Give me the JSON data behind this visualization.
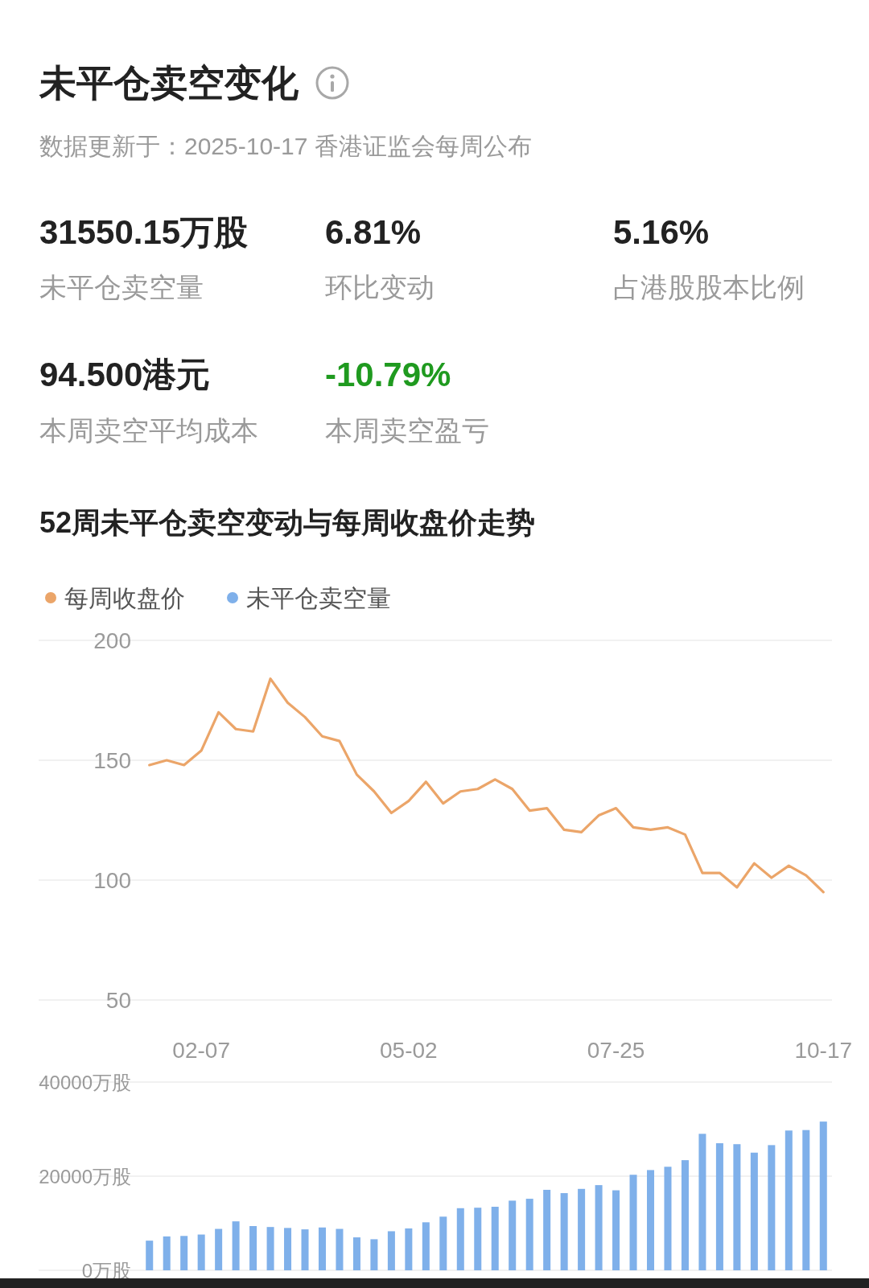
{
  "chart_data": [
    {
      "type": "other",
      "title": "未平仓卖空变化",
      "subtitle": "数据更新于：2025-10-17 香港证监会每周公布",
      "annotations": [
        "31550.15万股",
        "未平仓卖空量",
        "6.81%",
        "环比变动",
        "5.16%",
        "占港股股本比例",
        "94.500港元",
        "本周卖空平均成本",
        "-10.79%",
        "本周卖空盈亏"
      ]
    },
    {
      "type": "line",
      "title": "52周未平仓卖空变动与每周收盘价走势",
      "categories": [
        null,
        null,
        null,
        "02-07",
        null,
        null,
        null,
        null,
        null,
        null,
        null,
        null,
        null,
        null,
        null,
        "05-02",
        null,
        null,
        null,
        null,
        null,
        null,
        null,
        null,
        null,
        null,
        null,
        "07-25",
        null,
        null,
        null,
        null,
        null,
        null,
        null,
        null,
        null,
        null,
        null,
        "10-17"
      ],
      "series": [
        {
          "name": "每周收盘价",
          "color": "#eba569",
          "values": [
            148,
            150,
            148,
            154,
            170,
            163,
            162,
            184,
            174,
            168,
            160,
            158,
            144,
            137,
            128,
            133,
            141,
            132,
            137,
            138,
            142,
            138,
            129,
            130,
            121,
            120,
            127,
            130,
            122,
            121,
            122,
            119,
            103,
            103,
            97,
            107,
            101,
            106,
            102,
            95
          ]
        }
      ],
      "ylim": [
        50,
        200
      ],
      "yticks": [
        50,
        100,
        150,
        200
      ],
      "grid": "y",
      "legend": "top left"
    },
    {
      "type": "bar",
      "categories": [
        null,
        null,
        null,
        null,
        null,
        null,
        null,
        null,
        null,
        null,
        null,
        null,
        null,
        null,
        null,
        null,
        null,
        null,
        null,
        null,
        null,
        null,
        null,
        null,
        null,
        null,
        null,
        null,
        null,
        null,
        null,
        null,
        null,
        null,
        null,
        null,
        null,
        null,
        null,
        null
      ],
      "series": [
        {
          "name": "未平仓卖空量",
          "color": "#7fb0ea",
          "values": [
            6300,
            7200,
            7300,
            7600,
            8800,
            10400,
            9400,
            9200,
            9000,
            8700,
            9100,
            8800,
            7000,
            6600,
            8300,
            8900,
            10200,
            11400,
            13200,
            13300,
            13500,
            14800,
            15200,
            17100,
            16400,
            17300,
            18100,
            17000,
            20300,
            21300,
            22000,
            23400,
            29000,
            27000,
            26800,
            25000,
            26600,
            29700,
            29800,
            31600
          ]
        }
      ],
      "ylim": [
        0,
        40000
      ],
      "yticks": [
        {
          "value": 0,
          "label": "0万股"
        },
        {
          "value": 20000,
          "label": "20000万股"
        },
        {
          "value": 40000,
          "label": "40000万股"
        }
      ],
      "grid": "y",
      "legend": "top left",
      "tick_labels": "y"
    }
  ]
}
